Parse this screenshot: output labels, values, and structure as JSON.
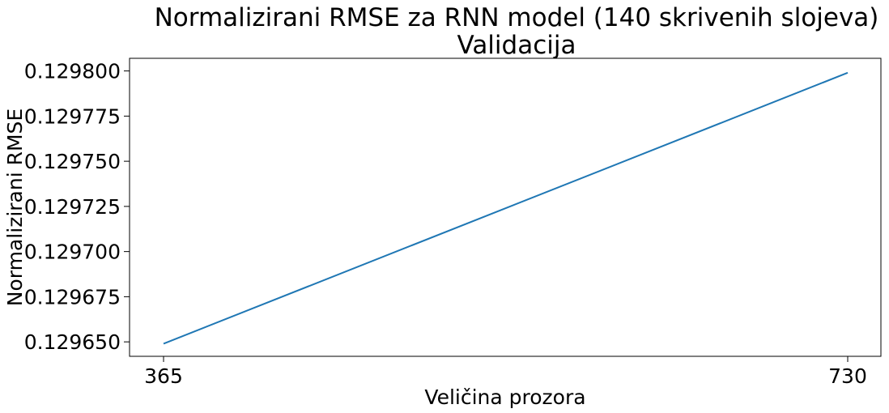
{
  "chart_data": {
    "type": "line",
    "title_line1": "Normalizirani RMSE za RNN model (140 skrivenih slojeva)",
    "title_line2": "Validacija",
    "xlabel": "Veličina prozora",
    "ylabel": "Normalizirani RMSE",
    "x": [
      365,
      730
    ],
    "x_ticks": [
      "365",
      "730"
    ],
    "y_ticks": [
      "0.129650",
      "0.129675",
      "0.129700",
      "0.129725",
      "0.129750",
      "0.129775",
      "0.129800"
    ],
    "y_tick_values": [
      0.12965,
      0.129675,
      0.1297,
      0.129725,
      0.12975,
      0.129775,
      0.1298
    ],
    "ylim": [
      0.129642,
      0.129807
    ],
    "series": [
      {
        "values": [
          0.129649,
          0.129799
        ],
        "color": "#1f77b4"
      }
    ],
    "grid": false,
    "legend": false
  }
}
